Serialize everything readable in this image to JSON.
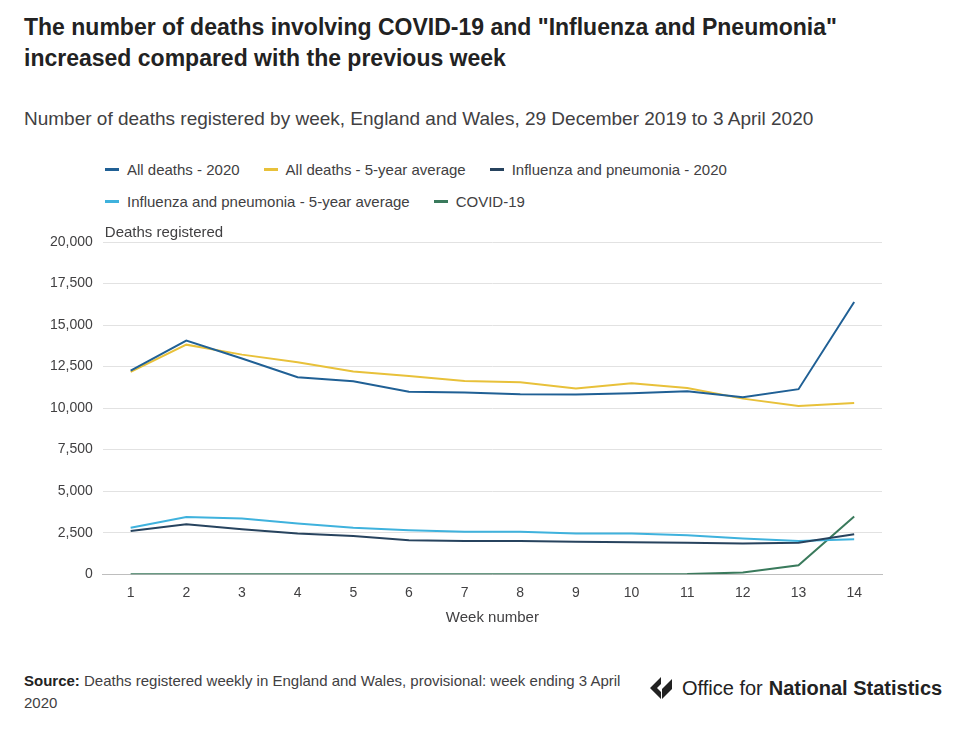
{
  "chart_data": {
    "type": "line",
    "title": "The number of deaths involving COVID-19 and \"Influenza and Pneumonia\" increased compared with the previous week",
    "subtitle": "Number of deaths registered by week, England and Wales, 29 December 2019 to 3 April 2020",
    "x_label": "Week number",
    "y_label": "Deaths registered",
    "categories": [
      "1",
      "2",
      "3",
      "4",
      "5",
      "6",
      "7",
      "8",
      "9",
      "10",
      "11",
      "12",
      "13",
      "14"
    ],
    "series": [
      {
        "name": "All deaths - 2020",
        "color": "#206095",
        "values": [
          12250,
          14060,
          12990,
          11860,
          11610,
          10990,
          10940,
          10840,
          10820,
          10900,
          11020,
          10650,
          11140,
          16390
        ]
      },
      {
        "name": "All deaths - 5-year average",
        "color": "#e8c13a",
        "values": [
          12180,
          13820,
          13220,
          12760,
          12210,
          11930,
          11630,
          11550,
          11180,
          11500,
          11210,
          10570,
          10130,
          10310
        ]
      },
      {
        "name": "Influenza and pneumonia - 2020",
        "color": "#27435e",
        "values": [
          2600,
          3000,
          2700,
          2450,
          2300,
          2050,
          2000,
          2000,
          1950,
          1930,
          1900,
          1850,
          1900,
          2400
        ]
      },
      {
        "name": "Influenza and pneumonia - 5-year average",
        "color": "#3fb2dd",
        "values": [
          2800,
          3450,
          3350,
          3050,
          2800,
          2650,
          2550,
          2550,
          2450,
          2450,
          2350,
          2150,
          2000,
          2100
        ]
      },
      {
        "name": "COVID-19",
        "color": "#3a7a5c",
        "values": [
          0,
          0,
          0,
          0,
          0,
          0,
          0,
          0,
          0,
          0,
          5,
          100,
          540,
          3480
        ]
      }
    ],
    "ylim": [
      0,
      20000
    ],
    "yticks": [
      0,
      {
        "value": 2500,
        "label": "2,500"
      },
      {
        "value": 5000,
        "label": "5,000"
      },
      {
        "value": 7500,
        "label": "7,500"
      },
      {
        "value": 10000,
        "label": "10,000"
      },
      {
        "value": 12500,
        "label": "12,500"
      },
      {
        "value": 15000,
        "label": "15,000"
      },
      {
        "value": 17500,
        "label": "17,500"
      },
      {
        "value": 20000,
        "label": "20,000"
      }
    ],
    "grid": true,
    "legend": "top",
    "marker": "none",
    "source_label": "Source:",
    "source": "Deaths registered weekly in England and Wales, provisional: week ending 3 April 2020",
    "logo": [
      "Office for",
      "National Statistics"
    ]
  }
}
